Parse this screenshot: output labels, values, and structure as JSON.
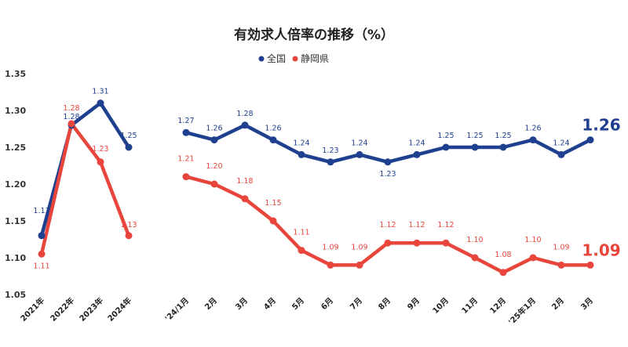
{
  "chart_data": {
    "type": "line",
    "title": "有効求人倍率の推移（%）",
    "ylim": [
      1.05,
      1.35
    ],
    "yticks": [
      "1.35",
      "1.30",
      "1.25",
      "1.20",
      "1.15",
      "1.10",
      "1.05"
    ],
    "legend": {
      "placement": "top-center"
    },
    "grid": false,
    "categories": [
      "2021年",
      "2022年",
      "2023年",
      "2024年",
      "'24/1月",
      "2月",
      "3月",
      "4月",
      "5月",
      "6月",
      "7月",
      "8月",
      "9月",
      "10月",
      "11月",
      "12月",
      "'25年1月",
      "2月",
      "3月"
    ],
    "segments": [
      [
        0,
        3
      ],
      [
        4,
        18
      ]
    ],
    "series": [
      {
        "name": "全国",
        "color": "#1f3f8f",
        "values": [
          1.13,
          1.28,
          1.31,
          1.25,
          1.27,
          1.26,
          1.28,
          1.26,
          1.24,
          1.23,
          1.24,
          1.23,
          1.24,
          1.25,
          1.25,
          1.25,
          1.26,
          1.24,
          1.26
        ],
        "labels": [
          "1.13",
          "1.28",
          "1.31",
          "1.25",
          "1.27",
          "1.26",
          "1.28",
          "1.26",
          "1.24",
          "1.23",
          "1.24",
          "1.23",
          "1.24",
          "1.25",
          "1.25",
          "1.25",
          "1.26",
          "1.24",
          "1.26"
        ],
        "end_label": "1.26"
      },
      {
        "name": "静岡県",
        "color": "#e8453c",
        "values": [
          1.105,
          1.282,
          1.23,
          1.13,
          1.21,
          1.2,
          1.18,
          1.15,
          1.11,
          1.09,
          1.09,
          1.12,
          1.12,
          1.12,
          1.1,
          1.08,
          1.1,
          1.09,
          1.09
        ],
        "labels": [
          "1.11",
          "1.28",
          "1.23",
          "1.13",
          "1.21",
          "1.20",
          "1.18",
          "1.15",
          "1.11",
          "1.09",
          "1.09",
          "1.12",
          "1.12",
          "1.12",
          "1.10",
          "1.08",
          "1.10",
          "1.09",
          ""
        ],
        "end_label": "1.09"
      }
    ]
  }
}
